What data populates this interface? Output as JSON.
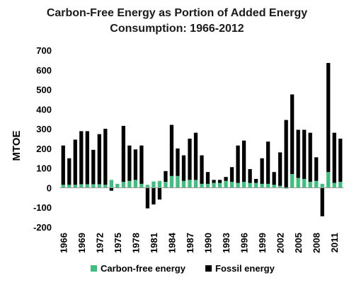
{
  "chart_data": {
    "type": "bar",
    "stacked": true,
    "title_line1": "Carbon-Free Energy as Portion of Added Energy",
    "title_line2": "Consumption: 1966-2012",
    "ylabel": "MTOE",
    "ylim": [
      -200,
      700
    ],
    "yticks": [
      -200,
      -100,
      0,
      100,
      200,
      300,
      400,
      500,
      600,
      700
    ],
    "x": [
      1966,
      1967,
      1968,
      1969,
      1970,
      1971,
      1972,
      1973,
      1974,
      1975,
      1976,
      1977,
      1978,
      1979,
      1980,
      1981,
      1982,
      1983,
      1984,
      1985,
      1986,
      1987,
      1988,
      1989,
      1990,
      1991,
      1992,
      1993,
      1994,
      1995,
      1996,
      1997,
      1998,
      1999,
      2000,
      2001,
      2002,
      2003,
      2004,
      2005,
      2006,
      2007,
      2008,
      2009,
      2010,
      2011,
      2012
    ],
    "xtick_labels": [
      "1966",
      "1969",
      "1972",
      "1975",
      "1978",
      "1981",
      "1984",
      "1987",
      "1990",
      "1993",
      "1996",
      "1999",
      "2002",
      "2005",
      "2008",
      "2011"
    ],
    "series": [
      {
        "name": "Carbon-free energy",
        "color": "#3dbf7e",
        "values": [
          15,
          15,
          15,
          18,
          18,
          18,
          18,
          15,
          40,
          20,
          30,
          35,
          40,
          20,
          15,
          32,
          35,
          30,
          60,
          60,
          35,
          40,
          40,
          20,
          20,
          25,
          25,
          35,
          30,
          25,
          30,
          25,
          25,
          20,
          20,
          15,
          10,
          -5,
          70,
          50,
          45,
          30,
          35,
          20,
          80,
          25,
          30
        ]
      },
      {
        "name": "Fossil energy",
        "color": "#000000",
        "values": [
          200,
          135,
          230,
          270,
          270,
          175,
          255,
          285,
          -15,
          0,
          285,
          180,
          155,
          195,
          -105,
          -85,
          -60,
          55,
          260,
          140,
          130,
          210,
          240,
          145,
          60,
          15,
          15,
          20,
          75,
          190,
          210,
          70,
          20,
          130,
          215,
          65,
          170,
          345,
          405,
          245,
          250,
          250,
          120,
          -145,
          555,
          255,
          220
        ]
      }
    ],
    "legend": {
      "placement": "bottom"
    },
    "grid": false
  }
}
